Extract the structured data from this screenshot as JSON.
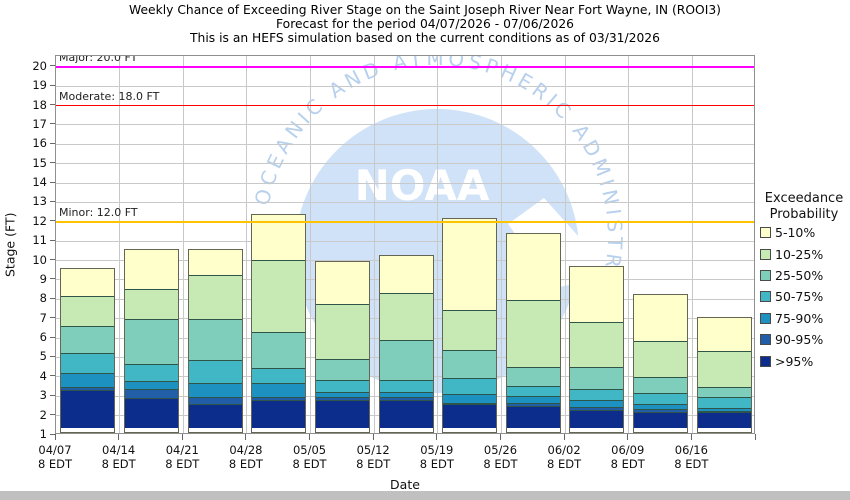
{
  "title": {
    "line1": "Weekly Chance of Exceeding River Stage on the Saint Joseph River Near Fort Wayne, IN (ROOI3)",
    "line2": "Forecast for the period 04/07/2026 - 07/06/2026",
    "line3": "This is an HEFS simulation based on the current conditions as of 03/31/2026"
  },
  "axes": {
    "y_label": "Stage (FT)",
    "x_label": "Date",
    "y_ticks": [
      1,
      2,
      3,
      4,
      5,
      6,
      7,
      8,
      9,
      10,
      11,
      12,
      13,
      14,
      15,
      16,
      17,
      18,
      19,
      20
    ],
    "y_min": 1,
    "y_top": 20.56
  },
  "thresholds": [
    {
      "name": "Major",
      "label": "Major: 20.0 FT",
      "value": 20.0,
      "color": "#ff00ff"
    },
    {
      "name": "Moderate",
      "label": "Moderate: 18.0 FT",
      "value": 18.0,
      "color": "#ff0000"
    },
    {
      "name": "Minor",
      "label": "Minor: 12.0 FT",
      "value": 12.0,
      "color": "#ffc400"
    }
  ],
  "legend": {
    "title": [
      "Exceedance",
      "Probability"
    ],
    "items": [
      {
        "label": "5-10%",
        "color": "#ffffcc"
      },
      {
        "label": "10-25%",
        "color": "#c7e9b4"
      },
      {
        "label": "25-50%",
        "color": "#7fcdbb"
      },
      {
        "label": "50-75%",
        "color": "#41b6c4"
      },
      {
        "label": "75-90%",
        "color": "#1d91c0"
      },
      {
        "label": "90-95%",
        "color": "#225ea8"
      },
      {
        "label": ">95%",
        "color": "#0d2d8c"
      }
    ]
  },
  "watermark": {
    "acronym": "NOAA",
    "arc_text": "NATIONAL OCEANIC AND ATMOSPHERIC ADMINISTRATION"
  },
  "chart_data": {
    "type": "bar",
    "stacked": true,
    "title": "Weekly Chance of Exceeding River Stage on the Saint Joseph River Near Fort Wayne, IN (ROOI3)",
    "xlabel": "Date",
    "ylabel": "Stage (FT)",
    "units": "FT",
    "ylim": [
      1,
      20.56
    ],
    "grid": true,
    "legend_position": "right",
    "baseline": 1.0,
    "categories": [
      "04/07",
      "04/14",
      "04/21",
      "04/28",
      "05/05",
      "05/12",
      "05/19",
      "05/26",
      "06/02",
      "06/09",
      "06/16"
    ],
    "category_sub_labels": [
      "8 EDT",
      "8 EDT",
      "8 EDT",
      "8 EDT",
      "8 EDT",
      "8 EDT",
      "8 EDT",
      "8 EDT",
      "8 EDT",
      "8 EDT",
      "8 EDT"
    ],
    "series_note": "series ordered bottom-to-top of stack; stage_tops = stage (FT) at top of each band per week, stack starts at baseline 1.0 FT",
    "series": [
      {
        "name": ">95%",
        "color": "#0d2d8c",
        "stage_tops": [
          3.0,
          2.6,
          2.3,
          2.5,
          2.5,
          2.5,
          2.3,
          2.2,
          2.0,
          1.9,
          1.9
        ]
      },
      {
        "name": "90-95%",
        "color": "#225ea8",
        "stage_tops": [
          3.2,
          3.1,
          2.7,
          2.7,
          2.7,
          2.7,
          2.4,
          2.4,
          2.2,
          2.1,
          2.0
        ]
      },
      {
        "name": "75-90%",
        "color": "#1d91c0",
        "stage_tops": [
          4.0,
          3.6,
          3.5,
          3.5,
          3.0,
          3.0,
          2.9,
          2.8,
          2.6,
          2.4,
          2.2
        ]
      },
      {
        "name": "50-75%",
        "color": "#41b6c4",
        "stage_tops": [
          5.1,
          4.5,
          4.7,
          4.3,
          3.7,
          3.7,
          3.8,
          3.4,
          3.2,
          3.0,
          2.8
        ]
      },
      {
        "name": "25-50%",
        "color": "#7fcdbb",
        "stage_tops": [
          6.5,
          6.9,
          6.9,
          6.2,
          4.8,
          5.8,
          5.3,
          4.4,
          4.4,
          3.9,
          3.4
        ]
      },
      {
        "name": "10-25%",
        "color": "#c7e9b4",
        "stage_tops": [
          8.1,
          8.5,
          9.2,
          10.0,
          7.7,
          8.3,
          7.4,
          7.9,
          6.8,
          5.8,
          5.3
        ]
      },
      {
        "name": "5-10%",
        "color": "#ffffcc",
        "stage_tops": [
          9.5,
          10.5,
          10.5,
          12.3,
          9.9,
          10.2,
          12.1,
          11.3,
          9.6,
          8.2,
          7.0
        ]
      }
    ]
  },
  "colors": {
    "background": "#ffffff",
    "grid": "#c9c9c9",
    "plot_border": "#8f8f8f",
    "bar_outline": "#636652",
    "segment_divider": "#2f5548",
    "tick": "#666666",
    "watermark_circle": "#cfe2f7",
    "watermark_text": "#b7d0ec",
    "footer_strip": "#c0c0c0"
  }
}
